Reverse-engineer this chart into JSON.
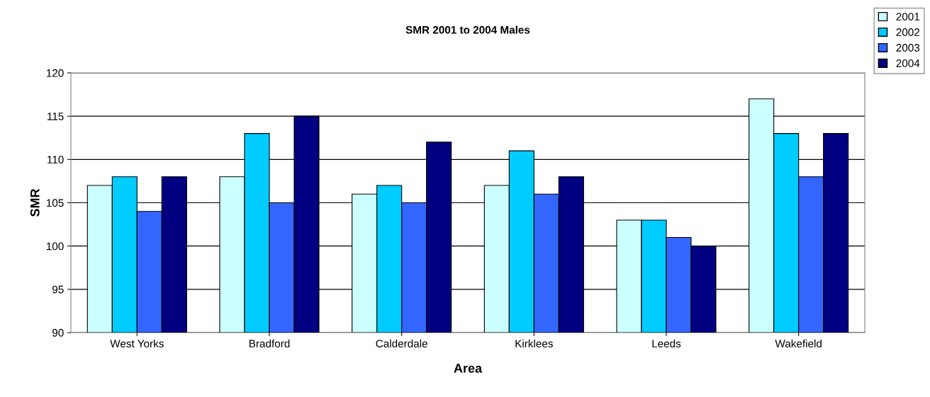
{
  "chart_data": {
    "type": "bar",
    "title": "SMR 2001 to 2004 Males",
    "xlabel": "Area",
    "ylabel": "SMR",
    "categories": [
      "West Yorks",
      "Bradford",
      "Calderdale",
      "Kirklees",
      "Leeds",
      "Wakefield"
    ],
    "series": [
      {
        "name": "2001",
        "color": "#ccffff",
        "values": [
          107,
          108,
          106,
          107,
          103,
          117
        ]
      },
      {
        "name": "2002",
        "color": "#00ccff",
        "values": [
          108,
          113,
          107,
          111,
          103,
          113
        ]
      },
      {
        "name": "2003",
        "color": "#3366ff",
        "values": [
          104,
          105,
          105,
          106,
          101,
          108
        ]
      },
      {
        "name": "2004",
        "color": "#000080",
        "values": [
          108,
          115,
          112,
          108,
          100,
          113
        ]
      }
    ],
    "ylim": [
      90,
      120
    ],
    "yticks": [
      90,
      95,
      100,
      105,
      110,
      115,
      120
    ],
    "grid": "y",
    "legend": "top right"
  }
}
